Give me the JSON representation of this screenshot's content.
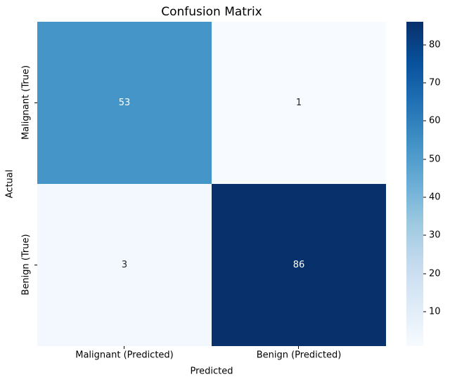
{
  "chart_data": {
    "type": "heatmap",
    "title": "Confusion Matrix",
    "xlabel": "Predicted",
    "ylabel": "Actual",
    "x_categories": [
      "Malignant (Predicted)",
      "Benign (Predicted)"
    ],
    "y_categories": [
      "Malignant (True)",
      "Benign (True)"
    ],
    "values": [
      [
        53,
        1
      ],
      [
        3,
        86
      ]
    ],
    "colormap": "Blues",
    "vmin": 1,
    "vmax": 86,
    "grid": false,
    "legend_position": "right-colorbar",
    "colorbar_ticks": [
      10,
      20,
      30,
      40,
      50,
      60,
      70,
      80
    ],
    "colormap_stops": [
      "#f7fbff",
      "#deebf7",
      "#c6dbef",
      "#9ecae1",
      "#6baed6",
      "#4292c6",
      "#2171b5",
      "#08519c",
      "#08306b"
    ]
  },
  "cells": [
    {
      "value": "53",
      "bg": "#4695c8",
      "fg": "#ffffff"
    },
    {
      "value": "1",
      "bg": "#f7fbff",
      "fg": "#262626"
    },
    {
      "value": "3",
      "bg": "#f2f8fd",
      "fg": "#262626"
    },
    {
      "value": "86",
      "bg": "#08306b",
      "fg": "#ffffff"
    }
  ]
}
